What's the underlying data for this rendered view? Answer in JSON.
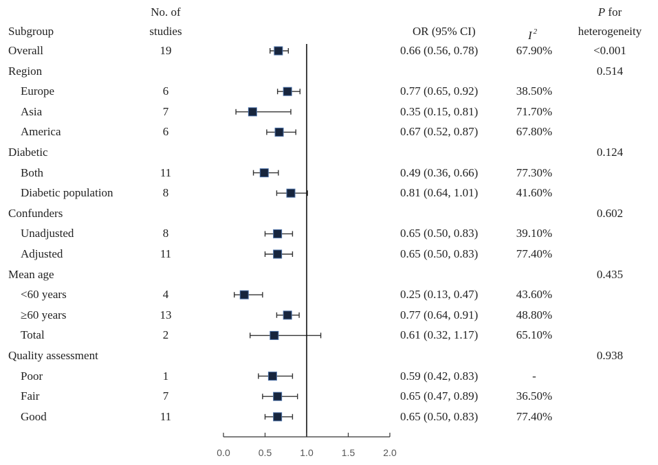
{
  "headers": {
    "subgroup": "Subgroup",
    "studies_line1": "No. of",
    "studies_line2": "studies",
    "or_ci": "OR (95% CI)",
    "i2": "I",
    "i2_sup": "2",
    "p_line1_italic": "P",
    "p_line1_rest": " for",
    "p_line2": "heterogeneity"
  },
  "chart_data": {
    "type": "forest",
    "title": "",
    "xlabel": "",
    "xlim": [
      0.0,
      2.0
    ],
    "xticks": [
      0.0,
      0.5,
      1.0,
      1.5,
      2.0
    ],
    "xtick_labels": [
      "0.0",
      "0.5",
      "1.0",
      "1.5",
      "2.0"
    ],
    "reference_line": 1.0,
    "marker_color": "#17253d",
    "rows": [
      {
        "label": "Overall",
        "indent": false,
        "n": "19",
        "or": 0.66,
        "lo": 0.56,
        "hi": 0.78,
        "or_text": "0.66 (0.56, 0.78)",
        "i2": "67.90%",
        "p": "<0.001"
      },
      {
        "label": "Region",
        "indent": false,
        "n": "",
        "or": null,
        "lo": null,
        "hi": null,
        "or_text": "",
        "i2": "",
        "p": "0.514"
      },
      {
        "label": "Europe",
        "indent": true,
        "n": "6",
        "or": 0.77,
        "lo": 0.65,
        "hi": 0.92,
        "or_text": "0.77 (0.65, 0.92)",
        "i2": "38.50%",
        "p": ""
      },
      {
        "label": "Asia",
        "indent": true,
        "n": "7",
        "or": 0.35,
        "lo": 0.15,
        "hi": 0.81,
        "or_text": "0.35 (0.15, 0.81)",
        "i2": "71.70%",
        "p": ""
      },
      {
        "label": "America",
        "indent": true,
        "n": "6",
        "or": 0.67,
        "lo": 0.52,
        "hi": 0.87,
        "or_text": "0.67 (0.52, 0.87)",
        "i2": "67.80%",
        "p": ""
      },
      {
        "label": "Diabetic",
        "indent": false,
        "n": "",
        "or": null,
        "lo": null,
        "hi": null,
        "or_text": "",
        "i2": "",
        "p": "0.124"
      },
      {
        "label": "Both",
        "indent": true,
        "n": "11",
        "or": 0.49,
        "lo": 0.36,
        "hi": 0.66,
        "or_text": "0.49 (0.36, 0.66)",
        "i2": "77.30%",
        "p": ""
      },
      {
        "label": "Diabetic population",
        "indent": true,
        "n": "8",
        "or": 0.81,
        "lo": 0.64,
        "hi": 1.01,
        "or_text": "0.81 (0.64, 1.01)",
        "i2": "41.60%",
        "p": ""
      },
      {
        "label": "Confunders",
        "indent": false,
        "n": "",
        "or": null,
        "lo": null,
        "hi": null,
        "or_text": "",
        "i2": "",
        "p": "0.602"
      },
      {
        "label": "Unadjusted",
        "indent": true,
        "n": "8",
        "or": 0.65,
        "lo": 0.5,
        "hi": 0.83,
        "or_text": "0.65 (0.50, 0.83)",
        "i2": "39.10%",
        "p": ""
      },
      {
        "label": "Adjusted",
        "indent": true,
        "n": "11",
        "or": 0.65,
        "lo": 0.5,
        "hi": 0.83,
        "or_text": "0.65 (0.50, 0.83)",
        "i2": "77.40%",
        "p": ""
      },
      {
        "label": "Mean age",
        "indent": false,
        "n": "",
        "or": null,
        "lo": null,
        "hi": null,
        "or_text": "",
        "i2": "",
        "p": "0.435"
      },
      {
        "label": "<60 years",
        "indent": true,
        "n": "4",
        "or": 0.25,
        "lo": 0.13,
        "hi": 0.47,
        "or_text": "0.25 (0.13, 0.47)",
        "i2": "43.60%",
        "p": ""
      },
      {
        "label": "≥60 years",
        "indent": true,
        "n": "13",
        "or": 0.77,
        "lo": 0.64,
        "hi": 0.91,
        "or_text": "0.77 (0.64, 0.91)",
        "i2": "48.80%",
        "p": ""
      },
      {
        "label": "Total",
        "indent": true,
        "n": "2",
        "or": 0.61,
        "lo": 0.32,
        "hi": 1.17,
        "or_text": "0.61 (0.32, 1.17)",
        "i2": "65.10%",
        "p": ""
      },
      {
        "label": "Quality assessment",
        "indent": false,
        "n": "",
        "or": null,
        "lo": null,
        "hi": null,
        "or_text": "",
        "i2": "",
        "p": "0.938"
      },
      {
        "label": "Poor",
        "indent": true,
        "n": "1",
        "or": 0.59,
        "lo": 0.42,
        "hi": 0.83,
        "or_text": "0.59 (0.42, 0.83)",
        "i2": "-",
        "p": ""
      },
      {
        "label": "Fair",
        "indent": true,
        "n": "7",
        "or": 0.65,
        "lo": 0.47,
        "hi": 0.89,
        "or_text": "0.65 (0.47, 0.89)",
        "i2": "36.50%",
        "p": ""
      },
      {
        "label": "Good",
        "indent": true,
        "n": "11",
        "or": 0.65,
        "lo": 0.5,
        "hi": 0.83,
        "or_text": "0.65 (0.50, 0.83)",
        "i2": "77.40%",
        "p": ""
      }
    ]
  }
}
